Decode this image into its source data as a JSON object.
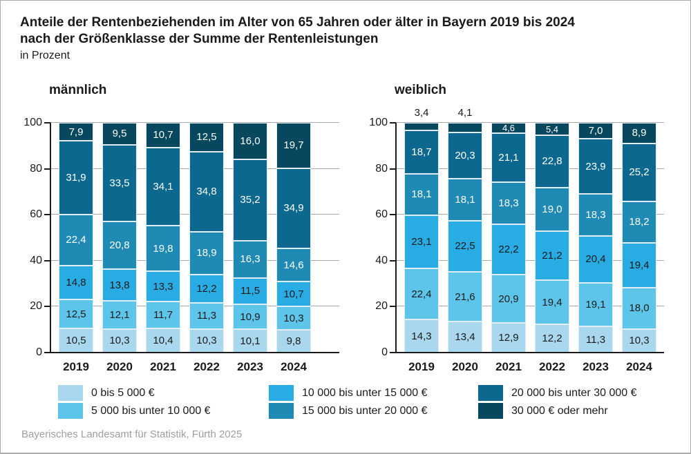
{
  "title": {
    "line1": "Anteile der Rentenbeziehenden im Alter von 65 Jahren oder älter in Bayern 2019 bis 2024",
    "line2": "nach der Größenklasse der Summe der Rentenleistungen",
    "line3": "in Prozent"
  },
  "footer": "Bayerisches Landesamt für Statistik, Fürth 2025",
  "colors": {
    "palette": [
      "#a8d7ee",
      "#5ec5ea",
      "#29ace3",
      "#1f8ab4",
      "#0c688f",
      "#07485f"
    ],
    "grid": "#a9a9a9",
    "axis": "#1a1a1a",
    "footer_text": "#9e9e9e"
  },
  "legend": [
    {
      "label": "0 bis 5 000 €"
    },
    {
      "label": "5 000 bis unter 10 000 €"
    },
    {
      "label": "10 000 bis unter 15 000 €"
    },
    {
      "label": "15 000 bis unter 20 000 €"
    },
    {
      "label": "20 000 bis unter 30 000 €"
    },
    {
      "label": "30 000 € oder mehr"
    }
  ],
  "chart_data": {
    "type": "bar",
    "stacked": true,
    "categories": [
      "2019",
      "2020",
      "2021",
      "2022",
      "2023",
      "2024"
    ],
    "ylim": [
      0,
      100
    ],
    "yticks": [
      0,
      20,
      40,
      60,
      80,
      100
    ],
    "grid": true,
    "legend_position": "bottom",
    "value_format": "german-decimal-one-place",
    "charts": [
      {
        "title": "männlich",
        "series": [
          {
            "name": "0 bis 5 000 €",
            "values": [
              10.5,
              10.3,
              10.4,
              10.3,
              10.1,
              9.8
            ]
          },
          {
            "name": "5 000 bis unter 10 000 €",
            "values": [
              12.5,
              12.1,
              11.7,
              11.3,
              10.9,
              10.3
            ]
          },
          {
            "name": "10 000 bis unter 15 000 €",
            "values": [
              14.8,
              13.8,
              13.3,
              12.2,
              11.5,
              10.7
            ]
          },
          {
            "name": "15 000 bis unter 20 000 €",
            "values": [
              22.4,
              20.8,
              19.8,
              18.9,
              16.3,
              14.6
            ]
          },
          {
            "name": "20 000 bis unter 30 000 €",
            "values": [
              31.9,
              33.5,
              34.1,
              34.8,
              35.2,
              34.9
            ]
          },
          {
            "name": "30 000 € oder mehr",
            "values": [
              7.9,
              9.5,
              10.7,
              12.5,
              16.0,
              19.7
            ]
          }
        ]
      },
      {
        "title": "weiblich",
        "series": [
          {
            "name": "0 bis 5 000 €",
            "values": [
              14.3,
              13.4,
              12.9,
              12.2,
              11.3,
              10.3
            ]
          },
          {
            "name": "5 000 bis unter 10 000 €",
            "values": [
              22.4,
              21.6,
              20.9,
              19.4,
              19.1,
              18.0
            ]
          },
          {
            "name": "10 000 bis unter 15 000 €",
            "values": [
              23.1,
              22.5,
              22.2,
              21.2,
              20.4,
              19.4
            ]
          },
          {
            "name": "15 000 bis unter 20 000 €",
            "values": [
              18.1,
              18.1,
              18.3,
              19.0,
              18.3,
              18.2
            ]
          },
          {
            "name": "20 000 bis unter 30 000 €",
            "values": [
              18.7,
              20.3,
              21.1,
              22.8,
              23.9,
              25.2
            ]
          },
          {
            "name": "30 000 € oder mehr",
            "values": [
              3.4,
              4.1,
              4.6,
              5.4,
              7.0,
              8.9
            ]
          }
        ]
      }
    ]
  }
}
